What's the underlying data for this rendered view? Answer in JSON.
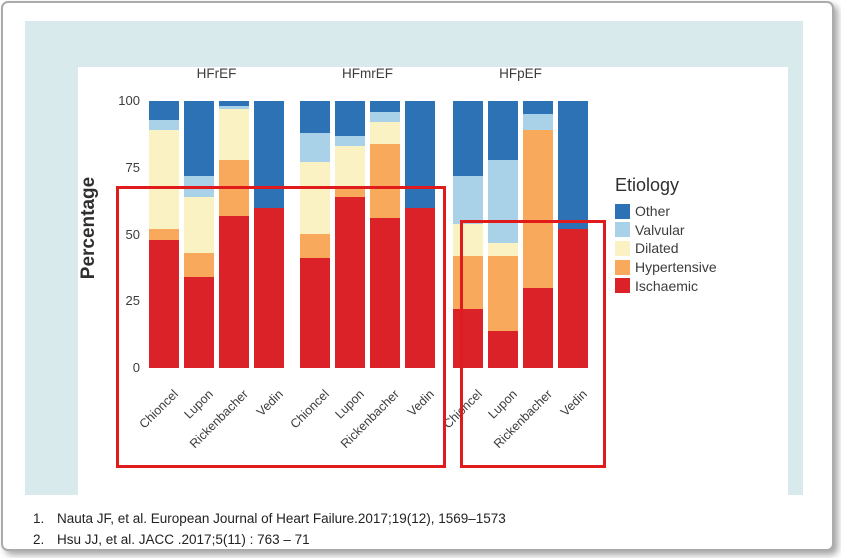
{
  "chart_data": {
    "type": "bar",
    "variant": "stacked-percent-faceted",
    "title": "",
    "ylabel": "Percentage",
    "ylim": [
      0,
      100
    ],
    "yticks": [
      100,
      75,
      50,
      25,
      0
    ],
    "grid": false,
    "categories": [
      "Chioncel",
      "Lupon",
      "Rickenbacher",
      "Vedin"
    ],
    "stack_order_bottom_to_top": [
      "Ischaemic",
      "Hypertensive",
      "Dilated",
      "Valvular",
      "Other"
    ],
    "facets": [
      {
        "label": "HFrEF",
        "series": {
          "Ischaemic": [
            48,
            34,
            57,
            60
          ],
          "Hypertensive": [
            4,
            9,
            21,
            0
          ],
          "Dilated": [
            37,
            21,
            19,
            0
          ],
          "Valvular": [
            4,
            8,
            1,
            0
          ],
          "Other": [
            7,
            28,
            2,
            40
          ]
        }
      },
      {
        "label": "HFmrEF",
        "series": {
          "Ischaemic": [
            41,
            64,
            56,
            60
          ],
          "Hypertensive": [
            9,
            3,
            28,
            0
          ],
          "Dilated": [
            27,
            16,
            8,
            0
          ],
          "Valvular": [
            11,
            4,
            4,
            0
          ],
          "Other": [
            12,
            13,
            4,
            40
          ]
        }
      },
      {
        "label": "HFpEF",
        "series": {
          "Ischaemic": [
            22,
            14,
            30,
            52
          ],
          "Hypertensive": [
            20,
            28,
            59,
            0
          ],
          "Dilated": [
            12,
            5,
            0,
            0
          ],
          "Valvular": [
            18,
            31,
            6,
            0
          ],
          "Other": [
            28,
            22,
            5,
            48
          ]
        }
      }
    ],
    "legend": {
      "title": "Etiology",
      "position": "right",
      "entries": [
        {
          "label": "Other",
          "color": "#2c72b4"
        },
        {
          "label": "Valvular",
          "color": "#a9d2e8"
        },
        {
          "label": "Dilated",
          "color": "#faf2c3"
        },
        {
          "label": "Hypertensive",
          "color": "#f8a95c"
        },
        {
          "label": "Ischaemic",
          "color": "#da2228"
        }
      ]
    }
  },
  "annotations": {
    "highlight_box_color": "#e01b1b",
    "highlight_box_count": 2
  },
  "citations": [
    {
      "number": "1.",
      "text": "Nauta JF, et al. European Journal of Heart Failure.2017;19(12), 1569–1573"
    },
    {
      "number": "2.",
      "text": "Hsu JJ, et al. JACC .2017;5(11) : 763 – 71"
    }
  ],
  "colors": {
    "panel_background": "#d9eaec",
    "chart_background": "#ffffff"
  }
}
